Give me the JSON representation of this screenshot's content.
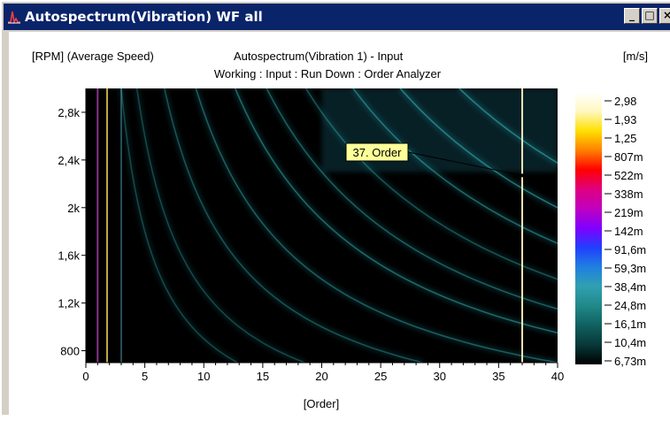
{
  "window": {
    "title": "Autospectrum(Vibration) WF all",
    "buttons": [
      "minimize",
      "maximize",
      "close"
    ]
  },
  "header": {
    "left": "[RPM] (Average Speed)",
    "center": "Autospectrum(Vibration 1) - Input",
    "right": "[m/s]",
    "subtitle": "Working : Input : Run Down : Order Analyzer"
  },
  "chart_data": {
    "type": "heatmap",
    "title": "Autospectrum(Vibration 1) - Input",
    "subtitle": "Working : Input : Run Down : Order Analyzer",
    "xlabel": "[Order]",
    "ylabel": "[RPM] (Average Speed)",
    "unit": "[m/s]",
    "xlim": [
      0,
      40
    ],
    "ylim": [
      700,
      3000
    ],
    "x_ticks": [
      "0",
      "5",
      "10",
      "15",
      "20",
      "25",
      "30",
      "35",
      "40"
    ],
    "y_ticks": [
      {
        "value": 800,
        "label": "800"
      },
      {
        "value": 1200,
        "label": "1,2k"
      },
      {
        "value": 1600,
        "label": "1,6k"
      },
      {
        "value": 2000,
        "label": "2k"
      },
      {
        "value": 2400,
        "label": "2,4k"
      },
      {
        "value": 2800,
        "label": "2,8k"
      }
    ],
    "colorbar_labels": [
      "2,98",
      "1,93",
      "1,25",
      "807m",
      "522m",
      "338m",
      "219m",
      "142m",
      "91,6m",
      "59,3m",
      "38,4m",
      "24,8m",
      "16,1m",
      "10,4m",
      "6,73m"
    ],
    "colorbar_colors": [
      "#ffffff",
      "#fff8c0",
      "#ffe000",
      "#ff8000",
      "#ff0000",
      "#e00080",
      "#c000c0",
      "#8000ff",
      "#2040ff",
      "#2080e0",
      "#30a0b0",
      "#208888",
      "#106060",
      "#083838",
      "#000000"
    ],
    "annotation": {
      "label": "37. Order",
      "order": 37,
      "rpm": 2270
    },
    "order_lines": [
      {
        "order": 1.0,
        "intensity": 0.55
      },
      {
        "order": 1.8,
        "intensity": 0.75
      },
      {
        "order": 3.0,
        "intensity": 0.4
      },
      {
        "order": 37.0,
        "intensity": 0.95
      }
    ],
    "resonance_bands": [
      {
        "k_order_rpm": 9000,
        "intensity": 0.3
      },
      {
        "k_order_rpm": 13000,
        "intensity": 0.3
      },
      {
        "k_order_rpm": 20000,
        "intensity": 0.35
      },
      {
        "k_order_rpm": 28000,
        "intensity": 0.4
      },
      {
        "k_order_rpm": 38000,
        "intensity": 0.45
      },
      {
        "k_order_rpm": 46000,
        "intensity": 0.4
      },
      {
        "k_order_rpm": 56000,
        "intensity": 0.35
      },
      {
        "k_order_rpm": 68000,
        "intensity": 0.45
      },
      {
        "k_order_rpm": 80000,
        "intensity": 0.5
      },
      {
        "k_order_rpm": 95000,
        "intensity": 0.5
      }
    ]
  }
}
